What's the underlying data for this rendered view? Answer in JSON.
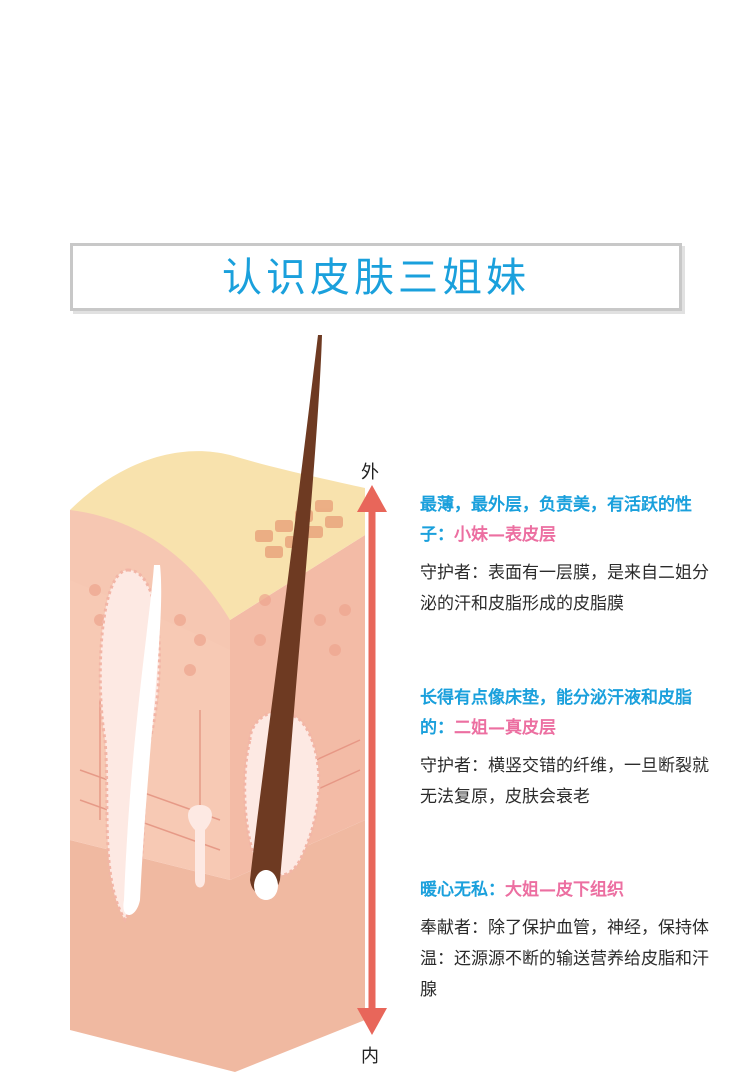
{
  "title": "认识皮肤三姐妹",
  "arrow": {
    "top_label": "外",
    "bottom_label": "内"
  },
  "layers": [
    {
      "head_blue": "最薄，最外层，负责美，有活跃的性子：",
      "head_pink": "小妹—表皮层",
      "body": "守护者：表面有一层膜，是来自二姐分泌的汗和皮脂形成的皮脂膜"
    },
    {
      "head_blue": "长得有点像床垫，能分泌汗液和皮脂的：",
      "head_pink": "二姐—真皮层",
      "body": "守护者：横竖交错的纤维，一旦断裂就无法复原，皮肤会衰老"
    },
    {
      "head_blue": "暖心无私：",
      "head_pink": "大姐—皮下组织",
      "body": "奉献者：除了保护血管，神经，保持体温：还源源不断的输送营养给皮脂和汗腺"
    }
  ],
  "colors": {
    "title_blue": "#1aa0dc",
    "accent_pink": "#ec6fa1",
    "arrow_red": "#e8665a",
    "skin_top": "#f7e4b0",
    "skin_layer": "#f5c2ac"
  }
}
